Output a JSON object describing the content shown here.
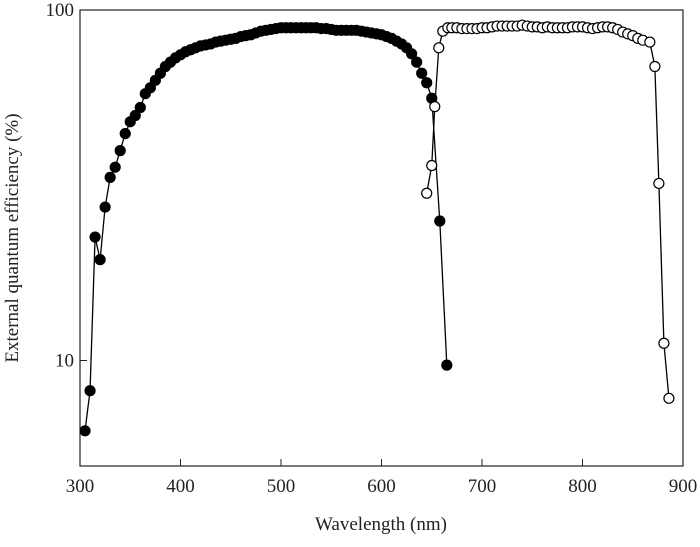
{
  "chart_data": {
    "type": "scatter-line",
    "x_label": "Wavelength (nm)",
    "y_label": "External quantum efficiency (%)",
    "log_y": true,
    "xlim": [
      300,
      900
    ],
    "xticks": [
      300,
      400,
      500,
      600,
      700,
      800,
      900
    ],
    "ylim": [
      5,
      100
    ],
    "yticks": [
      10,
      100
    ],
    "series": [
      {
        "color": "#000000",
        "marker_fill": "#000000",
        "x": [
          305,
          310,
          315,
          320,
          325,
          330,
          335,
          340,
          345,
          350,
          355,
          360,
          365,
          370,
          375,
          380,
          385,
          390,
          395,
          400,
          405,
          410,
          415,
          420,
          425,
          430,
          435,
          440,
          445,
          450,
          455,
          460,
          465,
          470,
          475,
          480,
          485,
          490,
          495,
          500,
          505,
          510,
          515,
          520,
          525,
          530,
          535,
          540,
          545,
          550,
          555,
          560,
          565,
          570,
          575,
          580,
          585,
          590,
          595,
          600,
          605,
          610,
          615,
          620,
          625,
          630,
          635,
          640,
          645,
          650,
          658,
          665
        ],
        "values": [
          6.3,
          8.2,
          22.5,
          19.4,
          27.4,
          33.3,
          35.6,
          39.7,
          44.4,
          48,
          50,
          52.7,
          57.7,
          60,
          63,
          66,
          69,
          71,
          73,
          74.5,
          76,
          77,
          78,
          79,
          79.5,
          80,
          81,
          81.5,
          82,
          82.5,
          83,
          84,
          84.5,
          85,
          86,
          87,
          87.5,
          88,
          88.5,
          89,
          89,
          89,
          89,
          89,
          89,
          89,
          89,
          88.5,
          88.5,
          88,
          87.5,
          87.5,
          87.5,
          87.5,
          87.5,
          87,
          86.5,
          86,
          85.5,
          85,
          84,
          83,
          81.5,
          80,
          78,
          75,
          71,
          66,
          62,
          56,
          25,
          9.7
        ]
      },
      {
        "color": "#000000",
        "marker_fill": "#ffffff",
        "x": [
          645,
          650,
          653,
          657,
          661,
          666,
          670,
          675,
          680,
          685,
          690,
          695,
          700,
          705,
          710,
          715,
          720,
          725,
          730,
          735,
          740,
          745,
          750,
          755,
          760,
          765,
          770,
          775,
          780,
          785,
          790,
          795,
          800,
          805,
          810,
          815,
          820,
          825,
          830,
          835,
          840,
          845,
          850,
          855,
          860,
          867,
          872,
          876,
          881,
          886
        ],
        "values": [
          30,
          36,
          53,
          78,
          87,
          89,
          89,
          89,
          88.5,
          88.5,
          88.5,
          88.5,
          89,
          89,
          89.5,
          90,
          90,
          90,
          90,
          90,
          90.5,
          90,
          89.5,
          89.5,
          89,
          89.5,
          89,
          89,
          89,
          89,
          89.5,
          89.5,
          89.5,
          89,
          88.5,
          89,
          89.5,
          89.5,
          89,
          88,
          86.5,
          85.5,
          84.5,
          83,
          82,
          81,
          69,
          32,
          11.2,
          7.8
        ]
      }
    ]
  }
}
